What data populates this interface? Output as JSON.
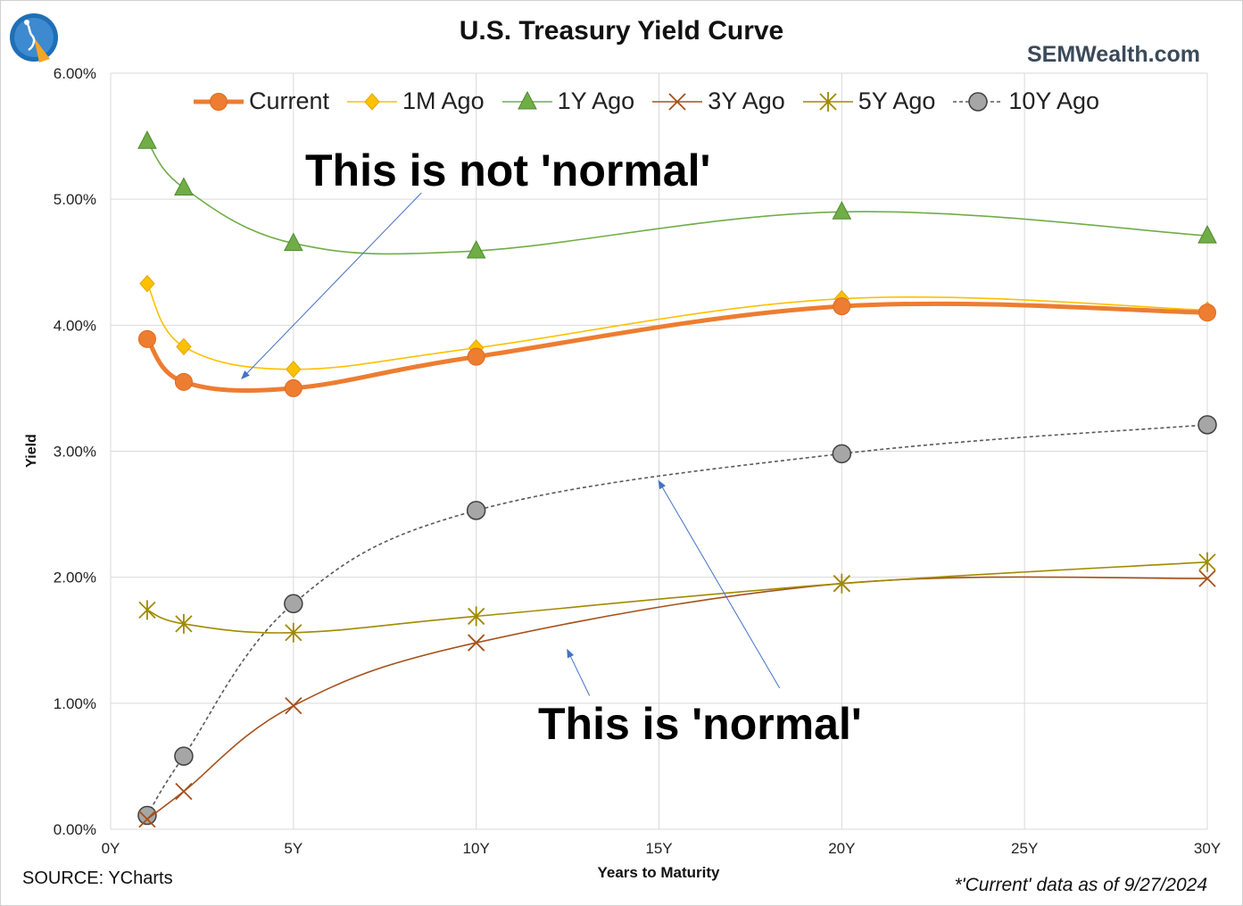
{
  "header": {
    "title": "U.S. Treasury Yield Curve",
    "brand": "SEMWealth.com"
  },
  "footer": {
    "source": "SOURCE: YCharts",
    "as_of": "*'Current' data as of 9/27/2024"
  },
  "annotations": {
    "not_normal": "This is not 'normal'",
    "normal": "This is 'normal'"
  },
  "colors": {
    "current": "#ed7d31",
    "m1": "#ffc000",
    "y1": "#70ad47",
    "y3": "#a5501b",
    "y5": "#a08a00",
    "y10": "#7f7f7f",
    "arrow": "#4472c4",
    "grid": "#d9d9d9"
  },
  "chart_data": {
    "type": "line",
    "title": "U.S. Treasury Yield Curve",
    "xlabel": "Years to Maturity",
    "ylabel": "Yield",
    "xlim": [
      0,
      30
    ],
    "ylim": [
      0,
      6
    ],
    "grid": true,
    "legend_position": "top",
    "x_ticks": [
      {
        "value": 0,
        "label": "0Y"
      },
      {
        "value": 5,
        "label": "5Y"
      },
      {
        "value": 10,
        "label": "10Y"
      },
      {
        "value": 15,
        "label": "15Y"
      },
      {
        "value": 20,
        "label": "20Y"
      },
      {
        "value": 25,
        "label": "25Y"
      },
      {
        "value": 30,
        "label": "30Y"
      }
    ],
    "y_ticks": [
      {
        "value": 0,
        "label": "0.00%"
      },
      {
        "value": 1,
        "label": "1.00%"
      },
      {
        "value": 2,
        "label": "2.00%"
      },
      {
        "value": 3,
        "label": "3.00%"
      },
      {
        "value": 4,
        "label": "4.00%"
      },
      {
        "value": 5,
        "label": "5.00%"
      },
      {
        "value": 6,
        "label": "6.00%"
      }
    ],
    "x": [
      1,
      2,
      5,
      10,
      20,
      30
    ],
    "series": [
      {
        "key": "current",
        "name": "Current",
        "marker": "circle",
        "style": "solid-thick",
        "values": [
          3.89,
          3.55,
          3.5,
          3.75,
          4.15,
          4.1
        ]
      },
      {
        "key": "m1",
        "name": "1M Ago",
        "marker": "diamond",
        "style": "solid",
        "values": [
          4.33,
          3.83,
          3.65,
          3.82,
          4.21,
          4.12
        ]
      },
      {
        "key": "y1",
        "name": "1Y Ago",
        "marker": "triangle",
        "style": "solid",
        "values": [
          5.46,
          5.09,
          4.65,
          4.59,
          4.9,
          4.71
        ]
      },
      {
        "key": "y3",
        "name": "3Y Ago",
        "marker": "x",
        "style": "solid",
        "values": [
          0.08,
          0.3,
          0.98,
          1.48,
          1.95,
          1.99
        ]
      },
      {
        "key": "y5",
        "name": "5Y Ago",
        "marker": "star",
        "style": "solid",
        "values": [
          1.74,
          1.63,
          1.56,
          1.69,
          1.95,
          2.12
        ]
      },
      {
        "key": "y10",
        "name": "10Y Ago",
        "marker": "circle-gray",
        "style": "dashed",
        "values": [
          0.11,
          0.58,
          1.79,
          2.53,
          2.98,
          3.21
        ]
      }
    ],
    "annotations": [
      {
        "text": "This is not 'normal'",
        "arrow_to": [
          3.6,
          3.58
        ],
        "arrow_from": [
          8.5,
          5.05
        ]
      },
      {
        "text": "This is 'normal'",
        "arrows_to": [
          [
            15,
            2.76
          ],
          [
            12.5,
            1.42
          ]
        ],
        "arrows_from": [
          [
            18.3,
            1.12
          ],
          [
            13.1,
            1.06
          ]
        ]
      }
    ]
  }
}
